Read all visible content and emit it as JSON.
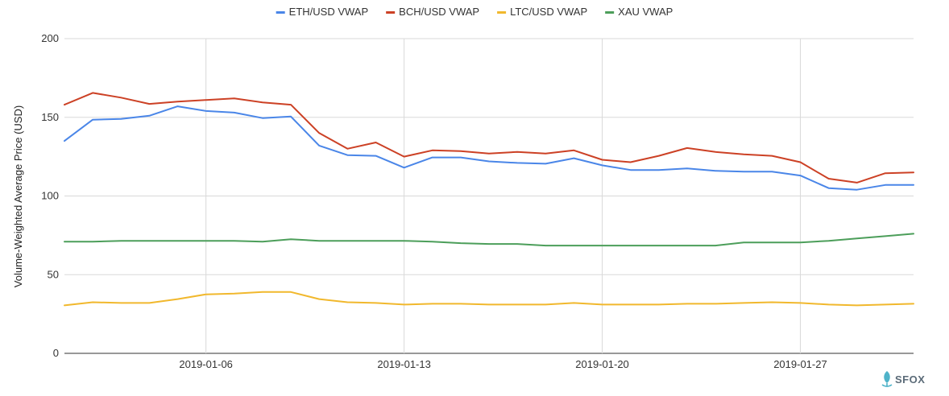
{
  "chart_data": {
    "type": "line",
    "title": "",
    "xlabel": "",
    "ylabel": "Volume-Weighted Average Price (USD)",
    "ylim": [
      0,
      200
    ],
    "yticks": [
      0,
      50,
      100,
      150,
      200
    ],
    "x": [
      "2019-01-01",
      "2019-01-02",
      "2019-01-03",
      "2019-01-04",
      "2019-01-05",
      "2019-01-06",
      "2019-01-07",
      "2019-01-08",
      "2019-01-09",
      "2019-01-10",
      "2019-01-11",
      "2019-01-12",
      "2019-01-13",
      "2019-01-14",
      "2019-01-15",
      "2019-01-16",
      "2019-01-17",
      "2019-01-18",
      "2019-01-19",
      "2019-01-20",
      "2019-01-21",
      "2019-01-22",
      "2019-01-23",
      "2019-01-24",
      "2019-01-25",
      "2019-01-26",
      "2019-01-27",
      "2019-01-28",
      "2019-01-29",
      "2019-01-30",
      "2019-01-31"
    ],
    "xtick_labels": [
      "2019-01-06",
      "2019-01-13",
      "2019-01-20",
      "2019-01-27"
    ],
    "grid": true,
    "legend_position": "top-center",
    "series": [
      {
        "name": "ETH/USD VWAP",
        "color": "#4a86e8",
        "values": [
          135,
          148.5,
          149,
          151,
          157,
          154,
          153,
          149.5,
          150.5,
          132,
          126,
          125.5,
          118,
          124.5,
          124.5,
          122,
          121,
          120.5,
          124,
          119.5,
          116.5,
          116.5,
          117.5,
          116,
          115.5,
          115.5,
          113,
          105,
          104,
          107,
          107
        ]
      },
      {
        "name": "BCH/USD VWAP",
        "color": "#cc4125",
        "values": [
          158,
          165.5,
          162.5,
          158.5,
          160,
          161,
          162,
          159.5,
          158,
          140,
          130,
          134,
          125,
          129,
          128.5,
          127,
          128,
          127,
          129,
          123,
          121.5,
          125.5,
          130.5,
          128,
          126.5,
          125.5,
          121.5,
          111,
          108.5,
          114.5,
          115
        ]
      },
      {
        "name": "LTC/USD VWAP",
        "color": "#f1b82d",
        "values": [
          30.5,
          32.5,
          32,
          32,
          34.5,
          37.5,
          38,
          39,
          39,
          34.5,
          32.5,
          32,
          31,
          31.5,
          31.5,
          31,
          31,
          31,
          32,
          31,
          31,
          31,
          31.5,
          31.5,
          32,
          32.5,
          32,
          31,
          30.5,
          31,
          31.5
        ]
      },
      {
        "name": "XAU VWAP",
        "color": "#4c9e5a",
        "values": [
          71,
          71,
          71.5,
          71.5,
          71.5,
          71.5,
          71.5,
          71,
          72.5,
          71.5,
          71.5,
          71.5,
          71.5,
          71,
          70,
          69.5,
          69.5,
          68.5,
          68.5,
          68.5,
          68.5,
          68.5,
          68.5,
          68.5,
          70.5,
          70.5,
          70.5,
          71.5,
          73,
          74.5,
          76
        ]
      }
    ]
  },
  "logo": {
    "text": "SFOX",
    "icon": "sfox-leaf-icon"
  }
}
